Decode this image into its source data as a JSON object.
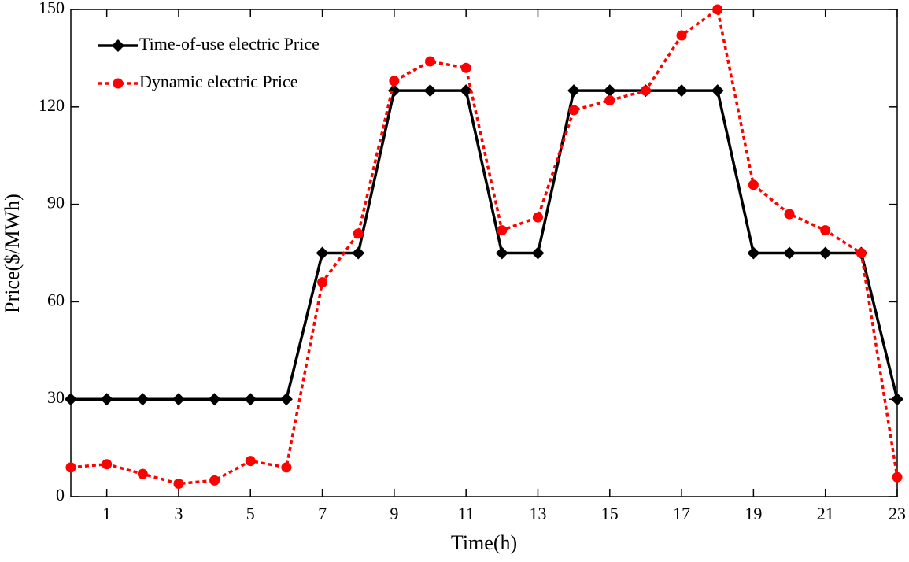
{
  "chart_data": {
    "type": "line",
    "x_label": "Time(h)",
    "y_label": "Price($/MWh)",
    "x": [
      0,
      1,
      2,
      3,
      4,
      5,
      6,
      7,
      8,
      9,
      10,
      11,
      12,
      13,
      14,
      15,
      16,
      17,
      18,
      19,
      20,
      21,
      22,
      23
    ],
    "xlim": [
      0,
      23
    ],
    "xticks": [
      1,
      3,
      5,
      7,
      9,
      11,
      13,
      15,
      17,
      19,
      21,
      23
    ],
    "ylim": [
      0,
      150
    ],
    "yticks": [
      0,
      30,
      60,
      90,
      120,
      150
    ],
    "legend": "upper left",
    "series": [
      {
        "name": "Time-of-use electric Price",
        "color": "#000000",
        "marker": "diamond",
        "linestyle": "solid",
        "values": [
          30,
          30,
          30,
          30,
          30,
          30,
          30,
          75,
          75,
          125,
          125,
          125,
          75,
          75,
          125,
          125,
          125,
          125,
          125,
          75,
          75,
          75,
          75,
          30
        ]
      },
      {
        "name": "Dynamic electric Price",
        "color": "#ff0000",
        "marker": "circle",
        "linestyle": "dotted",
        "values": [
          9,
          10,
          7,
          4,
          5,
          11,
          9,
          66,
          81,
          128,
          134,
          132,
          82,
          86,
          119,
          122,
          125,
          142,
          150,
          96,
          87,
          82,
          75,
          6
        ]
      }
    ]
  }
}
